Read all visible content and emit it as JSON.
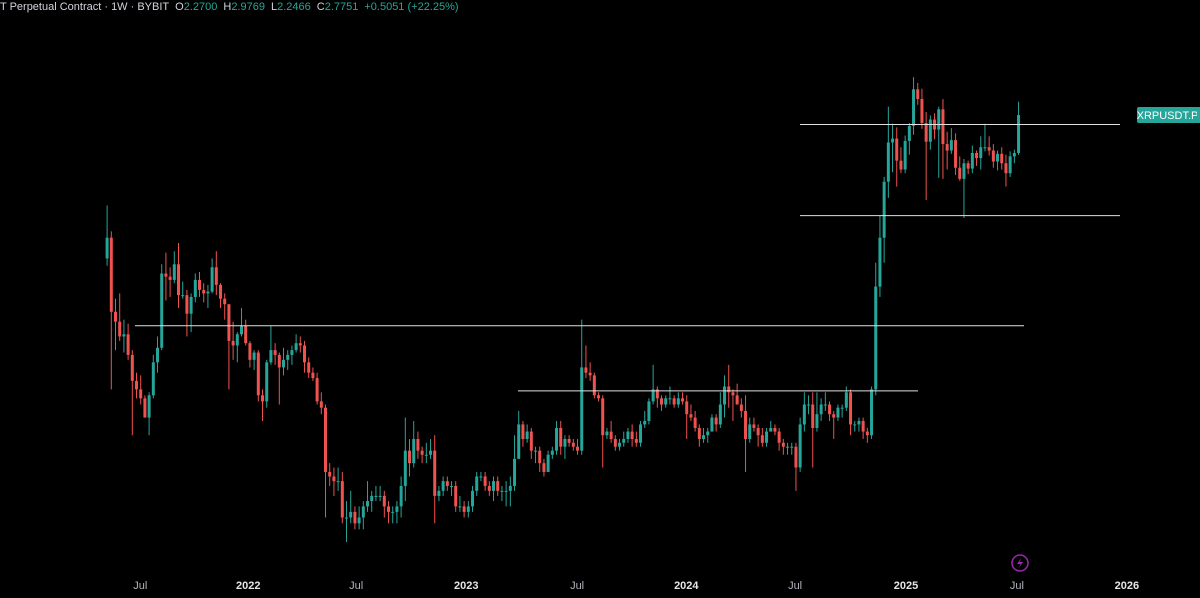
{
  "chart_data": {
    "type": "candlestick",
    "header": {
      "title": "T Perpetual Contract · 1W · BYBIT",
      "fields": [
        {
          "key": "O",
          "value": "2.2700"
        },
        {
          "key": "H",
          "value": "2.9769"
        },
        {
          "key": "L",
          "value": "2.2466"
        },
        {
          "key": "C",
          "value": "2.7751"
        }
      ],
      "change": "+0.5051 (+22.25%)"
    },
    "symbol_label": "XRPUSDT.P",
    "up_color": "#26a69a",
    "down_color": "#ef5350",
    "level_color": "#e0e0e0",
    "log_scale": true,
    "xlim": [
      -25.5,
      260.2
    ],
    "ylim": [
      0.25,
      5.1
    ],
    "xticks": [
      {
        "value": 7.9,
        "label": "Jul"
      },
      {
        "value": 33.6,
        "label": "2022"
      },
      {
        "value": 59.3,
        "label": "Jul"
      },
      {
        "value": 85.5,
        "label": "2023"
      },
      {
        "value": 111.9,
        "label": "Jul"
      },
      {
        "value": 137.9,
        "label": "2024"
      },
      {
        "value": 163.8,
        "label": "Jul"
      },
      {
        "value": 190.2,
        "label": "2025"
      },
      {
        "value": 216.6,
        "label": "Jul"
      },
      {
        "value": 242.8,
        "label": "2026"
      }
    ],
    "levels": [
      2.64,
      1.63,
      0.91,
      0.645
    ],
    "open": [
      1.3,
      1.45,
      0.98,
      0.93,
      0.86,
      0.87,
      0.78,
      0.68,
      0.65,
      0.62,
      0.56,
      0.63,
      0.75,
      0.81,
      1.2,
      1.18,
      1.16,
      1.26,
      1.07,
      1.07,
      0.97,
      1.06,
      1.16,
      1.1,
      1.08,
      1.09,
      1.24,
      1.13,
      1.05,
      1.02,
      0.84,
      0.82,
      0.87,
      0.91,
      0.83,
      0.76,
      0.79,
      0.63,
      0.61,
      0.75,
      0.8,
      0.78,
      0.73,
      0.76,
      0.78,
      0.8,
      0.83,
      0.82,
      0.75,
      0.71,
      0.69,
      0.61,
      0.59,
      0.42,
      0.41,
      0.4,
      0.4,
      0.33,
      0.33,
      0.34,
      0.32,
      0.33,
      0.35,
      0.36,
      0.37,
      0.37,
      0.37,
      0.35,
      0.34,
      0.34,
      0.35,
      0.39,
      0.47,
      0.44,
      0.5,
      0.47,
      0.46,
      0.46,
      0.47,
      0.37,
      0.38,
      0.4,
      0.39,
      0.39,
      0.35,
      0.35,
      0.34,
      0.35,
      0.38,
      0.41,
      0.41,
      0.39,
      0.38,
      0.4,
      0.38,
      0.38,
      0.38,
      0.39,
      0.45,
      0.54,
      0.5,
      0.52,
      0.47,
      0.47,
      0.44,
      0.42,
      0.46,
      0.47,
      0.53,
      0.48,
      0.5,
      0.49,
      0.48,
      0.47,
      0.73,
      0.71,
      0.7,
      0.63,
      0.62,
      0.51,
      0.52,
      0.5,
      0.48,
      0.49,
      0.5,
      0.52,
      0.5,
      0.49,
      0.54,
      0.55,
      0.61,
      0.65,
      0.62,
      0.6,
      0.62,
      0.62,
      0.6,
      0.62,
      0.61,
      0.57,
      0.56,
      0.53,
      0.5,
      0.51,
      0.52,
      0.56,
      0.54,
      0.6,
      0.66,
      0.64,
      0.63,
      0.6,
      0.58,
      0.5,
      0.54,
      0.53,
      0.51,
      0.49,
      0.52,
      0.53,
      0.52,
      0.49,
      0.48,
      0.48,
      0.48,
      0.43,
      0.54,
      0.6,
      0.6,
      0.53,
      0.57,
      0.6,
      0.6,
      0.57,
      0.56,
      0.59,
      0.59,
      0.64,
      0.54,
      0.54,
      0.55,
      0.52,
      0.51,
      0.65,
      1.12,
      1.45,
      1.95,
      2.4,
      2.45,
      2.18,
      2.08,
      2.42,
      2.62,
      3.18,
      3.02,
      2.66,
      2.41,
      2.71,
      2.57,
      2.86,
      2.38,
      2.3,
      2.43,
      2.1,
      1.98,
      2.15,
      2.09,
      2.27,
      2.21,
      2.34,
      2.34,
      2.3,
      2.17,
      2.26,
      2.15,
      2.04,
      2.23,
      2.27
    ],
    "high": [
      1.72,
      1.5,
      1.05,
      1.08,
      0.94,
      0.92,
      0.8,
      0.71,
      0.7,
      0.63,
      0.64,
      0.78,
      0.86,
      1.26,
      1.34,
      1.24,
      1.35,
      1.41,
      1.15,
      1.1,
      1.08,
      1.2,
      1.21,
      1.14,
      1.13,
      1.3,
      1.35,
      1.14,
      1.08,
      1.02,
      0.93,
      0.88,
      1.0,
      0.94,
      0.84,
      0.8,
      0.8,
      0.65,
      0.76,
      0.91,
      0.83,
      0.79,
      0.81,
      0.8,
      0.82,
      0.87,
      0.86,
      0.84,
      0.77,
      0.73,
      0.71,
      0.64,
      0.6,
      0.44,
      0.43,
      0.43,
      0.42,
      0.36,
      0.38,
      0.35,
      0.35,
      0.36,
      0.4,
      0.38,
      0.39,
      0.39,
      0.38,
      0.36,
      0.35,
      0.36,
      0.41,
      0.56,
      0.5,
      0.55,
      0.52,
      0.48,
      0.49,
      0.5,
      0.51,
      0.39,
      0.41,
      0.41,
      0.4,
      0.4,
      0.37,
      0.36,
      0.36,
      0.39,
      0.42,
      0.42,
      0.42,
      0.4,
      0.41,
      0.41,
      0.39,
      0.4,
      0.41,
      0.51,
      0.58,
      0.55,
      0.54,
      0.53,
      0.48,
      0.48,
      0.45,
      0.47,
      0.48,
      0.55,
      0.55,
      0.51,
      0.51,
      0.5,
      0.5,
      0.94,
      0.82,
      0.75,
      0.71,
      0.64,
      0.63,
      0.53,
      0.55,
      0.51,
      0.5,
      0.52,
      0.53,
      0.54,
      0.52,
      0.55,
      0.58,
      0.62,
      0.74,
      0.66,
      0.63,
      0.63,
      0.66,
      0.63,
      0.64,
      0.64,
      0.63,
      0.6,
      0.58,
      0.54,
      0.53,
      0.53,
      0.57,
      0.57,
      0.64,
      0.7,
      0.74,
      0.65,
      0.67,
      0.62,
      0.63,
      0.56,
      0.56,
      0.54,
      0.53,
      0.53,
      0.55,
      0.54,
      0.53,
      0.5,
      0.49,
      0.49,
      0.49,
      0.56,
      0.64,
      0.63,
      0.64,
      0.64,
      0.62,
      0.64,
      0.61,
      0.58,
      0.6,
      0.6,
      0.66,
      0.65,
      0.55,
      0.56,
      0.56,
      0.53,
      0.66,
      1.27,
      1.63,
      2.0,
      2.9,
      2.65,
      2.6,
      2.34,
      2.49,
      2.66,
      3.39,
      3.29,
      3.19,
      2.82,
      2.77,
      2.8,
      2.9,
      3.02,
      2.54,
      2.59,
      2.52,
      2.23,
      2.2,
      2.18,
      2.36,
      2.3,
      2.48,
      2.65,
      2.48,
      2.38,
      2.3,
      2.34,
      2.25,
      2.29,
      2.31,
      2.9769
    ],
    "low": [
      1.25,
      0.65,
      0.8,
      0.84,
      0.79,
      0.76,
      0.51,
      0.62,
      0.6,
      0.56,
      0.51,
      0.62,
      0.71,
      0.8,
      1.04,
      1.06,
      1.14,
      1.0,
      1.05,
      0.86,
      0.88,
      1.03,
      1.06,
      1.03,
      1.0,
      1.08,
      1.07,
      1.0,
      0.94,
      0.65,
      0.76,
      0.75,
      0.86,
      0.82,
      0.73,
      0.72,
      0.61,
      0.55,
      0.59,
      0.74,
      0.74,
      0.6,
      0.7,
      0.72,
      0.74,
      0.79,
      0.79,
      0.71,
      0.69,
      0.68,
      0.6,
      0.57,
      0.33,
      0.39,
      0.37,
      0.38,
      0.32,
      0.29,
      0.32,
      0.31,
      0.31,
      0.31,
      0.34,
      0.34,
      0.36,
      0.36,
      0.33,
      0.32,
      0.32,
      0.32,
      0.33,
      0.36,
      0.41,
      0.43,
      0.45,
      0.44,
      0.44,
      0.45,
      0.32,
      0.36,
      0.37,
      0.38,
      0.37,
      0.34,
      0.34,
      0.33,
      0.33,
      0.34,
      0.37,
      0.4,
      0.38,
      0.37,
      0.36,
      0.37,
      0.36,
      0.35,
      0.35,
      0.38,
      0.45,
      0.48,
      0.49,
      0.45,
      0.44,
      0.42,
      0.41,
      0.42,
      0.45,
      0.46,
      0.46,
      0.45,
      0.48,
      0.47,
      0.46,
      0.46,
      0.69,
      0.68,
      0.62,
      0.61,
      0.43,
      0.5,
      0.49,
      0.47,
      0.47,
      0.48,
      0.49,
      0.48,
      0.48,
      0.48,
      0.53,
      0.54,
      0.6,
      0.59,
      0.58,
      0.59,
      0.6,
      0.59,
      0.59,
      0.6,
      0.5,
      0.55,
      0.52,
      0.48,
      0.49,
      0.49,
      0.52,
      0.52,
      0.53,
      0.56,
      0.59,
      0.55,
      0.6,
      0.56,
      0.42,
      0.49,
      0.52,
      0.48,
      0.48,
      0.48,
      0.52,
      0.51,
      0.47,
      0.46,
      0.46,
      0.46,
      0.38,
      0.42,
      0.52,
      0.57,
      0.43,
      0.52,
      0.55,
      0.58,
      0.55,
      0.5,
      0.55,
      0.56,
      0.58,
      0.51,
      0.52,
      0.52,
      0.5,
      0.49,
      0.5,
      0.63,
      1.06,
      1.27,
      1.79,
      2.05,
      1.9,
      2.04,
      2.04,
      2.25,
      2.5,
      2.93,
      2.58,
      1.77,
      2.31,
      2.44,
      1.99,
      1.98,
      2.08,
      2.26,
      2.02,
      1.96,
      1.61,
      2.03,
      2.04,
      2.12,
      2.08,
      2.29,
      2.24,
      2.1,
      2.07,
      2.08,
      1.9,
      2.0,
      2.15,
      2.2466
    ],
    "close": [
      1.45,
      0.98,
      0.93,
      0.86,
      0.87,
      0.78,
      0.68,
      0.65,
      0.62,
      0.56,
      0.63,
      0.75,
      0.81,
      1.2,
      1.18,
      1.16,
      1.26,
      1.07,
      1.07,
      0.97,
      1.06,
      1.16,
      1.1,
      1.08,
      1.09,
      1.24,
      1.13,
      1.05,
      1.02,
      0.84,
      0.82,
      0.87,
      0.91,
      0.83,
      0.76,
      0.79,
      0.63,
      0.61,
      0.75,
      0.8,
      0.78,
      0.73,
      0.76,
      0.78,
      0.8,
      0.83,
      0.82,
      0.75,
      0.71,
      0.69,
      0.61,
      0.59,
      0.42,
      0.41,
      0.4,
      0.4,
      0.33,
      0.33,
      0.34,
      0.32,
      0.33,
      0.35,
      0.36,
      0.37,
      0.37,
      0.37,
      0.35,
      0.34,
      0.34,
      0.35,
      0.39,
      0.47,
      0.44,
      0.5,
      0.47,
      0.46,
      0.46,
      0.47,
      0.37,
      0.38,
      0.4,
      0.39,
      0.39,
      0.35,
      0.35,
      0.34,
      0.35,
      0.38,
      0.41,
      0.41,
      0.39,
      0.38,
      0.4,
      0.38,
      0.38,
      0.38,
      0.39,
      0.45,
      0.54,
      0.5,
      0.52,
      0.47,
      0.47,
      0.44,
      0.42,
      0.46,
      0.47,
      0.53,
      0.48,
      0.5,
      0.49,
      0.48,
      0.47,
      0.73,
      0.71,
      0.7,
      0.63,
      0.62,
      0.51,
      0.52,
      0.5,
      0.48,
      0.49,
      0.5,
      0.52,
      0.5,
      0.49,
      0.54,
      0.55,
      0.61,
      0.65,
      0.62,
      0.6,
      0.62,
      0.62,
      0.6,
      0.62,
      0.61,
      0.57,
      0.56,
      0.53,
      0.5,
      0.51,
      0.52,
      0.56,
      0.54,
      0.6,
      0.66,
      0.64,
      0.63,
      0.6,
      0.58,
      0.5,
      0.54,
      0.53,
      0.51,
      0.49,
      0.52,
      0.53,
      0.52,
      0.49,
      0.48,
      0.48,
      0.48,
      0.43,
      0.54,
      0.6,
      0.6,
      0.53,
      0.57,
      0.6,
      0.6,
      0.57,
      0.56,
      0.59,
      0.59,
      0.64,
      0.54,
      0.54,
      0.55,
      0.52,
      0.51,
      0.65,
      1.12,
      1.45,
      1.95,
      2.4,
      2.45,
      2.18,
      2.08,
      2.42,
      2.62,
      3.18,
      3.02,
      2.66,
      2.41,
      2.71,
      2.57,
      2.86,
      2.38,
      2.3,
      2.43,
      2.1,
      1.98,
      2.15,
      2.09,
      2.27,
      2.21,
      2.34,
      2.34,
      2.3,
      2.17,
      2.26,
      2.15,
      2.04,
      2.23,
      2.27,
      2.7751
    ]
  }
}
